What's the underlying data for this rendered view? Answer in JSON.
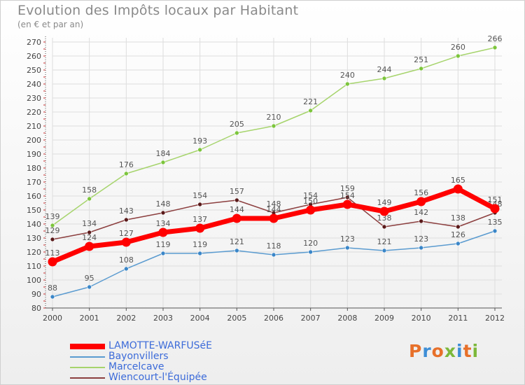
{
  "title": "Evolution des Impôts locaux par Habitant",
  "subtitle": "(en € et par an)",
  "logo": {
    "text": "Proxiti",
    "colors": [
      "#e7702a",
      "#3d8ed6",
      "#e7702a",
      "#7cb83b",
      "#3d8ed6",
      "#e7702a",
      "#7cb83b"
    ]
  },
  "chart_data": {
    "type": "line",
    "x": [
      "2000",
      "2001",
      "2002",
      "2003",
      "2004",
      "2005",
      "2006",
      "2007",
      "2008",
      "2009",
      "2010",
      "2011",
      "2012"
    ],
    "ylim": [
      80,
      270
    ],
    "yticks": [
      80,
      90,
      100,
      110,
      120,
      130,
      140,
      150,
      160,
      170,
      180,
      190,
      200,
      210,
      220,
      230,
      240,
      250,
      260,
      270
    ],
    "grid": true,
    "legend_position": "bottom-left",
    "series": [
      {
        "name": "Marcelcave",
        "color": "#a6d46c",
        "marker": "#7cc53c",
        "width": 1.5,
        "values": [
          139,
          158,
          176,
          184,
          193,
          205,
          210,
          221,
          240,
          244,
          251,
          260,
          266
        ]
      },
      {
        "name": "Wiencourt-l'Équipée",
        "color": "#8c3f3f",
        "marker": "#5a1a1a",
        "width": 1.5,
        "values": [
          129,
          134,
          143,
          148,
          154,
          157,
          148,
          154,
          159,
          138,
          142,
          138,
          148
        ]
      },
      {
        "name": "Bayonvillers",
        "color": "#5a9bd0",
        "marker": "#3a86c8",
        "width": 1.5,
        "values": [
          88,
          95,
          108,
          119,
          119,
          121,
          118,
          120,
          123,
          121,
          123,
          126,
          135
        ]
      },
      {
        "name": "LAMOTTE-WARFUSéE",
        "color": "#ff0000",
        "marker": "#ff0000",
        "width": 7,
        "values": [
          113,
          124,
          127,
          134,
          137,
          144,
          144,
          150,
          154,
          149,
          156,
          165,
          151
        ]
      }
    ],
    "legend_order": [
      "LAMOTTE-WARFUSéE",
      "Bayonvillers",
      "Marcelcave",
      "Wiencourt-l'Équipée"
    ]
  }
}
